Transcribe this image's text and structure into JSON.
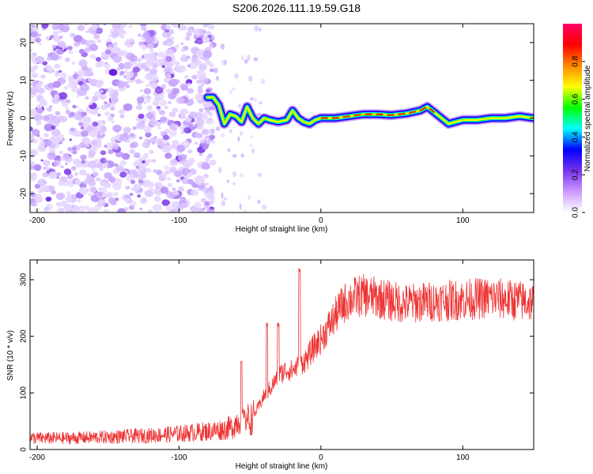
{
  "title": "S206.2026.111.19.59.G18",
  "chart_data": [
    {
      "type": "heatmap",
      "title": "S206.2026.111.19.59.G18",
      "xlabel": "Height of straight line (km)",
      "ylabel": "Frequency (Hz)",
      "xlim": [
        -205,
        150
      ],
      "ylim": [
        -25,
        25
      ],
      "xticks": [
        -200,
        -100,
        0,
        100
      ],
      "yticks": [
        -20,
        -10,
        0,
        10,
        20
      ],
      "colorbar": {
        "label": "Normalized spectral amplitude",
        "range": [
          0,
          1
        ],
        "ticks": [
          "0.0",
          "0.2",
          "0.4",
          "0.6",
          "0.8"
        ],
        "colors": [
          "#ffffff",
          "#cc99ff",
          "#7733ee",
          "#0000ff",
          "#00ffff",
          "#00ff00",
          "#ffff00",
          "#ff8800",
          "#ff0000",
          "#ff0066"
        ]
      },
      "ridge": [
        {
          "x": -80,
          "y": 5.5
        },
        {
          "x": -76,
          "y": 5.5
        },
        {
          "x": -72,
          "y": 3.5
        },
        {
          "x": -68,
          "y": -1.5
        },
        {
          "x": -64,
          "y": 1
        },
        {
          "x": -60,
          "y": 0.5
        },
        {
          "x": -56,
          "y": -1
        },
        {
          "x": -52,
          "y": 3
        },
        {
          "x": -48,
          "y": 0
        },
        {
          "x": -44,
          "y": -1.5
        },
        {
          "x": -40,
          "y": 0
        },
        {
          "x": -36,
          "y": -0.5
        },
        {
          "x": -30,
          "y": -1
        },
        {
          "x": -24,
          "y": -0.5
        },
        {
          "x": -20,
          "y": 2
        },
        {
          "x": -16,
          "y": 0
        },
        {
          "x": -12,
          "y": -1
        },
        {
          "x": -8,
          "y": -1.5
        },
        {
          "x": -4,
          "y": -0.5
        },
        {
          "x": 0,
          "y": 0
        },
        {
          "x": 10,
          "y": 0
        },
        {
          "x": 20,
          "y": 0.5
        },
        {
          "x": 30,
          "y": 1
        },
        {
          "x": 40,
          "y": 1
        },
        {
          "x": 50,
          "y": 0.8
        },
        {
          "x": 60,
          "y": 1.2
        },
        {
          "x": 70,
          "y": 2
        },
        {
          "x": 75,
          "y": 3
        },
        {
          "x": 80,
          "y": 1.5
        },
        {
          "x": 85,
          "y": 0
        },
        {
          "x": 90,
          "y": -1.5
        },
        {
          "x": 95,
          "y": -1
        },
        {
          "x": 100,
          "y": -0.5
        },
        {
          "x": 110,
          "y": -0.5
        },
        {
          "x": 120,
          "y": 0
        },
        {
          "x": 130,
          "y": 0
        },
        {
          "x": 140,
          "y": 0.5
        },
        {
          "x": 150,
          "y": 0
        }
      ],
      "noise_region": {
        "x_from": -205,
        "x_to": -80,
        "note": "scattered purple speckle"
      }
    },
    {
      "type": "line",
      "xlabel": "Height of straight line (km)",
      "ylabel": "SNR (10 * v/v)",
      "xlim": [
        -205,
        150
      ],
      "ylim": [
        0,
        335
      ],
      "xticks": [
        -200,
        -100,
        0,
        100
      ],
      "yticks": [
        0,
        100,
        200,
        300
      ],
      "color": "#ee3333",
      "series": [
        {
          "name": "SNR envelope",
          "x": [
            -205,
            -180,
            -150,
            -120,
            -100,
            -80,
            -70,
            -62,
            -55,
            -50,
            -45,
            -40,
            -35,
            -30,
            -25,
            -20,
            -15,
            -10,
            -5,
            0,
            5,
            10,
            15,
            20,
            25,
            30,
            40,
            50,
            60,
            80,
            100,
            120,
            140,
            150
          ],
          "y": [
            20,
            20,
            22,
            25,
            28,
            32,
            35,
            40,
            65,
            50,
            70,
            95,
            110,
            130,
            140,
            140,
            150,
            160,
            180,
            195,
            215,
            235,
            255,
            265,
            270,
            272,
            268,
            262,
            258,
            262,
            265,
            268,
            263,
            260
          ]
        },
        {
          "name": "spikes",
          "x": [
            -56,
            -38,
            -30,
            -15
          ],
          "y": [
            160,
            225,
            225,
            320
          ]
        }
      ]
    }
  ]
}
